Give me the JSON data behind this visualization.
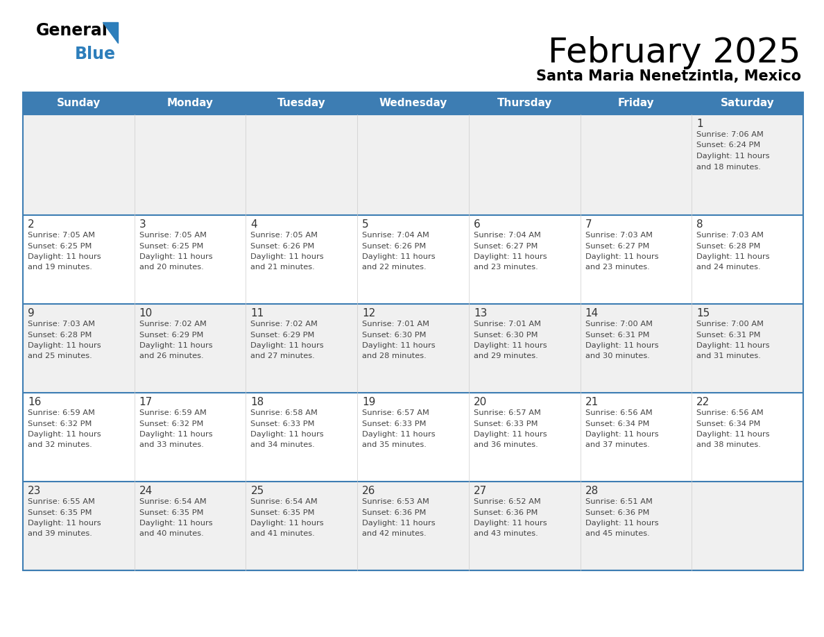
{
  "title": "February 2025",
  "subtitle": "Santa Maria Nenetzintla, Mexico",
  "header_bg": "#3d7db3",
  "header_text": "#ffffff",
  "row_bg_odd": "#f0f0f0",
  "row_bg_even": "#ffffff",
  "day_names": [
    "Sunday",
    "Monday",
    "Tuesday",
    "Wednesday",
    "Thursday",
    "Friday",
    "Saturday"
  ],
  "cell_text_color": "#444444",
  "day_number_color": "#333333",
  "separator_color": "#3d7db3",
  "calendar_data": [
    [
      null,
      null,
      null,
      null,
      null,
      null,
      {
        "day": 1,
        "sunrise": "7:06 AM",
        "sunset": "6:24 PM",
        "daylight_line1": "Daylight: 11 hours",
        "daylight_line2": "and 18 minutes."
      }
    ],
    [
      {
        "day": 2,
        "sunrise": "7:05 AM",
        "sunset": "6:25 PM",
        "daylight_line1": "Daylight: 11 hours",
        "daylight_line2": "and 19 minutes."
      },
      {
        "day": 3,
        "sunrise": "7:05 AM",
        "sunset": "6:25 PM",
        "daylight_line1": "Daylight: 11 hours",
        "daylight_line2": "and 20 minutes."
      },
      {
        "day": 4,
        "sunrise": "7:05 AM",
        "sunset": "6:26 PM",
        "daylight_line1": "Daylight: 11 hours",
        "daylight_line2": "and 21 minutes."
      },
      {
        "day": 5,
        "sunrise": "7:04 AM",
        "sunset": "6:26 PM",
        "daylight_line1": "Daylight: 11 hours",
        "daylight_line2": "and 22 minutes."
      },
      {
        "day": 6,
        "sunrise": "7:04 AM",
        "sunset": "6:27 PM",
        "daylight_line1": "Daylight: 11 hours",
        "daylight_line2": "and 23 minutes."
      },
      {
        "day": 7,
        "sunrise": "7:03 AM",
        "sunset": "6:27 PM",
        "daylight_line1": "Daylight: 11 hours",
        "daylight_line2": "and 23 minutes."
      },
      {
        "day": 8,
        "sunrise": "7:03 AM",
        "sunset": "6:28 PM",
        "daylight_line1": "Daylight: 11 hours",
        "daylight_line2": "and 24 minutes."
      }
    ],
    [
      {
        "day": 9,
        "sunrise": "7:03 AM",
        "sunset": "6:28 PM",
        "daylight_line1": "Daylight: 11 hours",
        "daylight_line2": "and 25 minutes."
      },
      {
        "day": 10,
        "sunrise": "7:02 AM",
        "sunset": "6:29 PM",
        "daylight_line1": "Daylight: 11 hours",
        "daylight_line2": "and 26 minutes."
      },
      {
        "day": 11,
        "sunrise": "7:02 AM",
        "sunset": "6:29 PM",
        "daylight_line1": "Daylight: 11 hours",
        "daylight_line2": "and 27 minutes."
      },
      {
        "day": 12,
        "sunrise": "7:01 AM",
        "sunset": "6:30 PM",
        "daylight_line1": "Daylight: 11 hours",
        "daylight_line2": "and 28 minutes."
      },
      {
        "day": 13,
        "sunrise": "7:01 AM",
        "sunset": "6:30 PM",
        "daylight_line1": "Daylight: 11 hours",
        "daylight_line2": "and 29 minutes."
      },
      {
        "day": 14,
        "sunrise": "7:00 AM",
        "sunset": "6:31 PM",
        "daylight_line1": "Daylight: 11 hours",
        "daylight_line2": "and 30 minutes."
      },
      {
        "day": 15,
        "sunrise": "7:00 AM",
        "sunset": "6:31 PM",
        "daylight_line1": "Daylight: 11 hours",
        "daylight_line2": "and 31 minutes."
      }
    ],
    [
      {
        "day": 16,
        "sunrise": "6:59 AM",
        "sunset": "6:32 PM",
        "daylight_line1": "Daylight: 11 hours",
        "daylight_line2": "and 32 minutes."
      },
      {
        "day": 17,
        "sunrise": "6:59 AM",
        "sunset": "6:32 PM",
        "daylight_line1": "Daylight: 11 hours",
        "daylight_line2": "and 33 minutes."
      },
      {
        "day": 18,
        "sunrise": "6:58 AM",
        "sunset": "6:33 PM",
        "daylight_line1": "Daylight: 11 hours",
        "daylight_line2": "and 34 minutes."
      },
      {
        "day": 19,
        "sunrise": "6:57 AM",
        "sunset": "6:33 PM",
        "daylight_line1": "Daylight: 11 hours",
        "daylight_line2": "and 35 minutes."
      },
      {
        "day": 20,
        "sunrise": "6:57 AM",
        "sunset": "6:33 PM",
        "daylight_line1": "Daylight: 11 hours",
        "daylight_line2": "and 36 minutes."
      },
      {
        "day": 21,
        "sunrise": "6:56 AM",
        "sunset": "6:34 PM",
        "daylight_line1": "Daylight: 11 hours",
        "daylight_line2": "and 37 minutes."
      },
      {
        "day": 22,
        "sunrise": "6:56 AM",
        "sunset": "6:34 PM",
        "daylight_line1": "Daylight: 11 hours",
        "daylight_line2": "and 38 minutes."
      }
    ],
    [
      {
        "day": 23,
        "sunrise": "6:55 AM",
        "sunset": "6:35 PM",
        "daylight_line1": "Daylight: 11 hours",
        "daylight_line2": "and 39 minutes."
      },
      {
        "day": 24,
        "sunrise": "6:54 AM",
        "sunset": "6:35 PM",
        "daylight_line1": "Daylight: 11 hours",
        "daylight_line2": "and 40 minutes."
      },
      {
        "day": 25,
        "sunrise": "6:54 AM",
        "sunset": "6:35 PM",
        "daylight_line1": "Daylight: 11 hours",
        "daylight_line2": "and 41 minutes."
      },
      {
        "day": 26,
        "sunrise": "6:53 AM",
        "sunset": "6:36 PM",
        "daylight_line1": "Daylight: 11 hours",
        "daylight_line2": "and 42 minutes."
      },
      {
        "day": 27,
        "sunrise": "6:52 AM",
        "sunset": "6:36 PM",
        "daylight_line1": "Daylight: 11 hours",
        "daylight_line2": "and 43 minutes."
      },
      {
        "day": 28,
        "sunrise": "6:51 AM",
        "sunset": "6:36 PM",
        "daylight_line1": "Daylight: 11 hours",
        "daylight_line2": "and 45 minutes."
      },
      null
    ]
  ]
}
